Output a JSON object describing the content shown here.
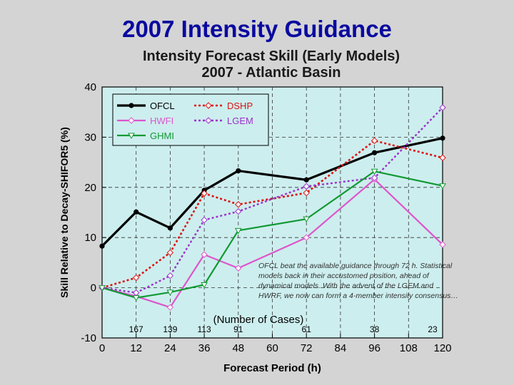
{
  "slide_title": "2007 Intensity Guidance",
  "annotation": "OFCL beat the available guidance through 72 h. Statistical models back in their accustomed position, ahead of dynamical models. With the advent of the LGEM and HWRF, we now can form a 4-member intensity consensus…",
  "chart_data": {
    "type": "line",
    "title": "Intensity Forecast Skill (Early Models)",
    "subtitle": "2007 - Atlantic Basin",
    "xlabel": "Forecast Period (h)",
    "ylabel": "Skill Relative to Decay-SHIFOR5 (%)",
    "xlim": [
      0,
      120
    ],
    "ylim": [
      -10,
      40
    ],
    "x_ticks": [
      0,
      12,
      24,
      36,
      48,
      60,
      72,
      84,
      96,
      108,
      120
    ],
    "y_ticks": [
      -10,
      0,
      10,
      20,
      30,
      40
    ],
    "grid": "dashed at 12 h intervals and every 10 %",
    "legend_position": "top-left",
    "cases_label": "(Number of Cases)",
    "cases": [
      {
        "x": 12,
        "n": "167"
      },
      {
        "x": 24,
        "n": "139"
      },
      {
        "x": 36,
        "n": "113"
      },
      {
        "x": 48,
        "n": "91"
      },
      {
        "x": 72,
        "n": "61"
      },
      {
        "x": 96,
        "n": "38"
      },
      {
        "x": 120,
        "n": "23"
      }
    ],
    "series": [
      {
        "name": "OFCL",
        "color": "#000000",
        "dash": "solid",
        "width": 3.2,
        "marker": "dot",
        "x": [
          0,
          12,
          24,
          36,
          48,
          72,
          96,
          120
        ],
        "values": [
          8.3,
          15.1,
          11.9,
          19.4,
          23.3,
          21.5,
          26.9,
          29.8
        ]
      },
      {
        "name": "DSHP",
        "color": "#dd1111",
        "dash": "dotted",
        "width": 2.6,
        "marker": "diamond",
        "x": [
          0,
          12,
          24,
          36,
          48,
          72,
          96,
          120
        ],
        "values": [
          0.0,
          2.0,
          7.0,
          18.8,
          16.6,
          18.9,
          29.3,
          25.9
        ]
      },
      {
        "name": "HWFI",
        "color": "#dd55cc",
        "dash": "solid",
        "width": 2.2,
        "marker": "diamond",
        "x": [
          0,
          12,
          24,
          36,
          48,
          72,
          96,
          120
        ],
        "values": [
          0.0,
          -1.7,
          -3.9,
          6.6,
          3.9,
          10.0,
          21.6,
          8.6
        ]
      },
      {
        "name": "LGEM",
        "color": "#9a33cc",
        "dash": "dotted",
        "width": 2.4,
        "marker": "diamond",
        "x": [
          0,
          12,
          24,
          36,
          48,
          72,
          96,
          120
        ],
        "values": [
          0.0,
          -1.0,
          2.4,
          13.5,
          15.2,
          20.2,
          21.9,
          35.9
        ]
      },
      {
        "name": "GHMI",
        "color": "#119933",
        "dash": "solid",
        "width": 2.2,
        "marker": "triangle",
        "x": [
          0,
          12,
          24,
          36,
          48,
          72,
          96,
          120
        ],
        "values": [
          0.0,
          -2.0,
          -0.9,
          0.6,
          11.4,
          13.7,
          23.2,
          20.3
        ]
      }
    ]
  }
}
